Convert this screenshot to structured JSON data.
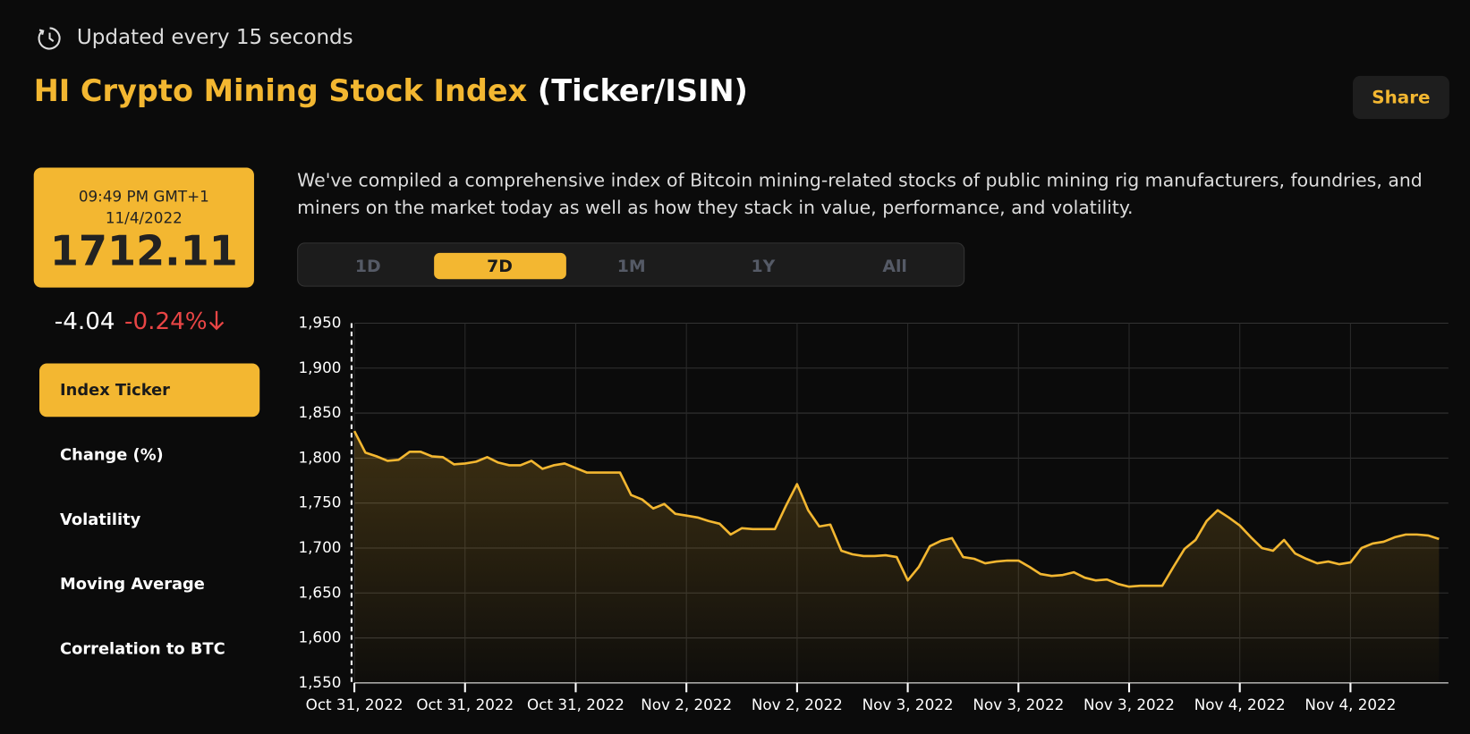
{
  "header": {
    "update_note": "Updated every 15 seconds",
    "title_highlight": "HI Crypto Mining Stock Index",
    "title_rest": "(Ticker/ISIN)",
    "share": "Share"
  },
  "quote": {
    "time": "09:49 PM GMT+1",
    "date": "11/4/2022",
    "value": "1712.11",
    "change": "-4.04",
    "change_pct": "-0.24%"
  },
  "menu": {
    "items": [
      "Index Ticker",
      "Change (%)",
      "Volatility",
      "Moving Average",
      "Correlation to BTC"
    ],
    "active": 0
  },
  "description": "We've compiled a comprehensive index of Bitcoin mining-related stocks of public mining rig manufacturers, foundries, and miners on the market today as well as how they stack in value, performance, and volatility.",
  "ranges": {
    "items": [
      "1D",
      "7D",
      "1M",
      "1Y",
      "All"
    ],
    "active": 1
  },
  "chart_data": {
    "type": "line",
    "color": "#f3b731",
    "area": true,
    "grid": true,
    "categories": [
      "Oct 31, 2022",
      null,
      null,
      null,
      null,
      null,
      null,
      null,
      null,
      null,
      "Oct 31, 2022",
      null,
      null,
      null,
      null,
      null,
      null,
      null,
      null,
      null,
      "Oct 31, 2022",
      null,
      null,
      null,
      null,
      null,
      null,
      null,
      null,
      null,
      "Nov 2, 2022",
      null,
      null,
      null,
      null,
      null,
      null,
      null,
      null,
      null,
      "Nov 2, 2022",
      null,
      null,
      null,
      null,
      null,
      null,
      null,
      null,
      null,
      "Nov 3, 2022",
      null,
      null,
      null,
      null,
      null,
      null,
      null,
      null,
      null,
      "Nov 3, 2022",
      null,
      null,
      null,
      null,
      null,
      null,
      null,
      null,
      null,
      "Nov 3, 2022",
      null,
      null,
      null,
      null,
      null,
      null,
      null,
      null,
      null,
      "Nov 4, 2022",
      null,
      null,
      null,
      null,
      null,
      null,
      null,
      null,
      null,
      "Nov 4, 2022",
      null,
      null,
      null,
      null,
      null,
      null,
      null,
      null
    ],
    "values": [
      1830,
      1806,
      1802,
      1797,
      1798,
      1807,
      1807,
      1802,
      1801,
      1793,
      1794,
      1796,
      1801,
      1795,
      1792,
      1792,
      1797,
      1788,
      1792,
      1794,
      1789,
      1784,
      1784,
      1784,
      1784,
      1759,
      1754,
      1744,
      1749,
      1738,
      1736,
      1734,
      1730,
      1727,
      1715,
      1722,
      1721,
      1721,
      1721,
      1747,
      1771,
      1742,
      1724,
      1726,
      1697,
      1693,
      1691,
      1691,
      1692,
      1690,
      1664,
      1679,
      1702,
      1708,
      1711,
      1690,
      1688,
      1683,
      1685,
      1686,
      1686,
      1679,
      1671,
      1669,
      1670,
      1673,
      1667,
      1664,
      1665,
      1660,
      1657,
      1658,
      1658,
      1658,
      1679,
      1699,
      1709,
      1730,
      1742,
      1734,
      1725,
      1712,
      1700,
      1697,
      1709,
      1694,
      1688,
      1683,
      1685,
      1682,
      1684,
      1700,
      1705,
      1707,
      1712,
      1715,
      1715,
      1714,
      1710
    ],
    "ylim": [
      1550,
      1950
    ],
    "yticks": [
      {
        "value": 1550,
        "label": "1,550"
      },
      {
        "value": 1600,
        "label": "1,600"
      },
      {
        "value": 1650,
        "label": "1,650"
      },
      {
        "value": 1700,
        "label": "1,700"
      },
      {
        "value": 1750,
        "label": "1,750"
      },
      {
        "value": 1800,
        "label": "1,800"
      },
      {
        "value": 1850,
        "label": "1,850"
      },
      {
        "value": 1900,
        "label": "1,900"
      },
      {
        "value": 1950,
        "label": "1,950"
      }
    ]
  }
}
